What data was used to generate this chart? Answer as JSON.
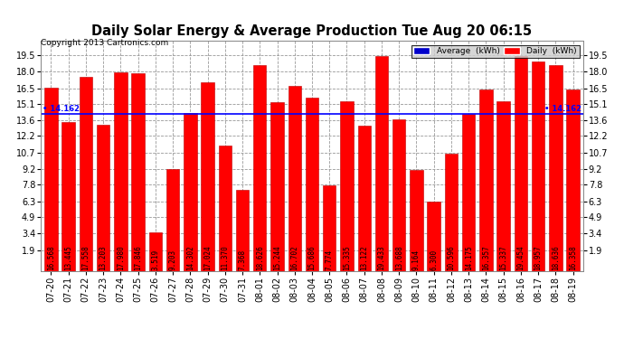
{
  "title": "Daily Solar Energy & Average Production Tue Aug 20 06:15",
  "copyright": "Copyright 2013 Cartronics.com",
  "legend_labels": [
    "Average  (kWh)",
    "Daily  (kWh)"
  ],
  "legend_colors": [
    "#0000cc",
    "#ff0000"
  ],
  "average_value": 14.162,
  "categories": [
    "07-20",
    "07-21",
    "07-22",
    "07-23",
    "07-24",
    "07-25",
    "07-26",
    "07-27",
    "07-28",
    "07-29",
    "07-30",
    "07-31",
    "08-01",
    "08-02",
    "08-03",
    "08-04",
    "08-05",
    "08-06",
    "08-07",
    "08-08",
    "08-09",
    "08-10",
    "08-11",
    "08-12",
    "08-13",
    "08-14",
    "08-15",
    "08-16",
    "08-17",
    "08-18",
    "08-19"
  ],
  "values": [
    16.568,
    13.445,
    17.558,
    13.203,
    17.98,
    17.846,
    3.519,
    9.203,
    14.302,
    17.024,
    11.37,
    7.368,
    18.626,
    15.244,
    16.702,
    15.686,
    7.774,
    15.335,
    13.122,
    19.433,
    13.688,
    9.164,
    6.3,
    10.596,
    14.175,
    16.357,
    15.337,
    19.454,
    18.957,
    18.636,
    16.358
  ],
  "bar_color": "#ff0000",
  "bar_edge_color": "#bb0000",
  "average_line_color": "#0000ff",
  "yticks": [
    1.9,
    3.4,
    4.9,
    6.3,
    7.8,
    9.2,
    10.7,
    12.2,
    13.6,
    15.1,
    16.5,
    18.0,
    19.5
  ],
  "ylim": [
    0,
    20.8
  ],
  "grid_color": "#999999",
  "background_color": "#ffffff",
  "plot_bg_color": "#ffffff",
  "fig_width": 6.9,
  "fig_height": 3.75,
  "title_fontsize": 10.5,
  "copyright_fontsize": 6.5,
  "bar_label_fontsize": 5.5,
  "tick_fontsize": 7
}
